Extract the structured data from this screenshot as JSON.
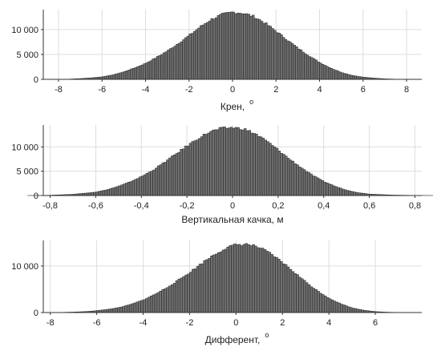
{
  "chart_data": [
    {
      "type": "bar",
      "xlabel": "Крен,",
      "xlabel_superscript": "o",
      "xlim": [
        -8.7,
        8.7
      ],
      "ylim": [
        0,
        14000
      ],
      "xticks": [
        -8,
        -6,
        -4,
        -2,
        0,
        2,
        4,
        6,
        8
      ],
      "xtick_labels": [
        "-8",
        "-6",
        "-4",
        "-2",
        "0",
        "2",
        "4",
        "6",
        "8"
      ],
      "yticks": [
        0,
        5000,
        10000
      ],
      "ytick_labels": [
        "0",
        "5 000",
        "10 000"
      ],
      "grid": true,
      "bin_width": 0.1,
      "x": [
        -7.5,
        -7.0,
        -6.5,
        -6.0,
        -5.5,
        -5.0,
        -4.5,
        -4.0,
        -3.5,
        -3.0,
        -2.5,
        -2.0,
        -1.5,
        -1.0,
        -0.5,
        0.0,
        0.5,
        1.0,
        1.5,
        2.0,
        2.5,
        3.0,
        3.5,
        4.0,
        4.5,
        5.0,
        5.5,
        6.0,
        6.5,
        7.0,
        7.5
      ],
      "values": [
        50,
        150,
        300,
        500,
        900,
        1500,
        2300,
        3200,
        4400,
        5700,
        7200,
        8800,
        10500,
        12000,
        13000,
        13500,
        13300,
        12600,
        11300,
        9700,
        8000,
        6300,
        4800,
        3400,
        2300,
        1400,
        800,
        450,
        250,
        100,
        40
      ]
    },
    {
      "type": "bar",
      "xlabel": "Вертикальная качка, м",
      "xlim": [
        -0.83,
        0.83
      ],
      "ylim": [
        0,
        14500
      ],
      "xticks": [
        -0.8,
        -0.6,
        -0.4,
        -0.2,
        0,
        0.2,
        0.4,
        0.6,
        0.8
      ],
      "xtick_labels": [
        "-0,8",
        "-0,6",
        "-0,4",
        "-0,2",
        "0",
        "0,2",
        "0,4",
        "0,6",
        "0,8"
      ],
      "yticks": [
        0,
        5000,
        10000
      ],
      "ytick_labels": [
        "0",
        "5 000",
        "10 000"
      ],
      "grid": true,
      "bin_width": 0.01,
      "x": [
        -0.8,
        -0.7,
        -0.6,
        -0.55,
        -0.5,
        -0.45,
        -0.4,
        -0.35,
        -0.3,
        -0.25,
        -0.2,
        -0.15,
        -0.1,
        -0.05,
        0.0,
        0.05,
        0.1,
        0.15,
        0.2,
        0.25,
        0.3,
        0.35,
        0.4,
        0.45,
        0.5,
        0.55,
        0.6,
        0.7,
        0.8
      ],
      "values": [
        60,
        250,
        700,
        1200,
        1900,
        2800,
        3900,
        5200,
        6800,
        8500,
        10200,
        11800,
        13100,
        13800,
        14000,
        13700,
        12700,
        11200,
        9400,
        7500,
        5800,
        4200,
        2900,
        1900,
        1100,
        600,
        300,
        100,
        30
      ]
    },
    {
      "type": "bar",
      "xlabel": "Дифферент,",
      "xlabel_superscript": "o",
      "xlim": [
        -8.3,
        8.0
      ],
      "ylim": [
        0,
        15500
      ],
      "xticks": [
        -8,
        -6,
        -4,
        -2,
        0,
        2,
        4,
        6
      ],
      "xtick_labels": [
        "-8",
        "-6",
        "-4",
        "-2",
        "0",
        "2",
        "4",
        "6"
      ],
      "yticks": [
        0,
        10000
      ],
      "ytick_labels": [
        "0",
        "10 000"
      ],
      "grid": true,
      "bin_width": 0.1,
      "x": [
        -7.5,
        -7.0,
        -6.5,
        -6.0,
        -5.5,
        -5.0,
        -4.5,
        -4.0,
        -3.5,
        -3.0,
        -2.5,
        -2.0,
        -1.5,
        -1.0,
        -0.5,
        0.0,
        0.5,
        1.0,
        1.5,
        2.0,
        2.5,
        3.0,
        3.5,
        4.0,
        4.5,
        5.0,
        5.5,
        6.0,
        6.5,
        7.0
      ],
      "values": [
        40,
        100,
        200,
        400,
        700,
        1100,
        1800,
        2700,
        3900,
        5300,
        6900,
        8600,
        10500,
        12300,
        13700,
        14600,
        14700,
        14000,
        12600,
        10800,
        8700,
        6600,
        4700,
        3100,
        1900,
        1000,
        500,
        200,
        80,
        30
      ]
    }
  ]
}
